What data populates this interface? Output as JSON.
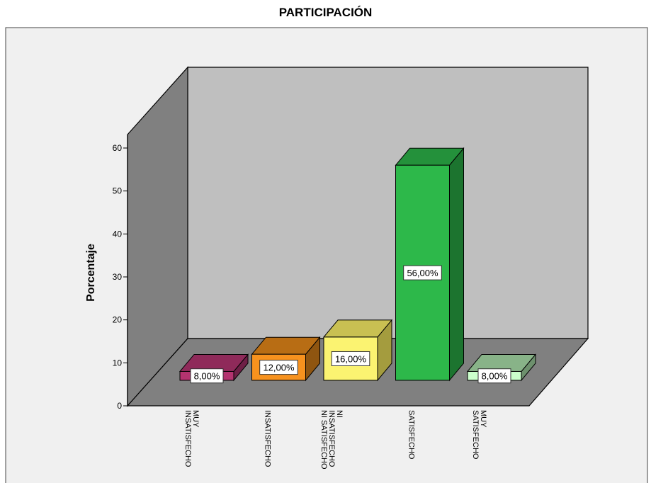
{
  "chart_data": {
    "type": "bar",
    "title": "PARTICIPACIÓN",
    "xlabel": "",
    "ylabel": "Porcentaje",
    "ylim": [
      0,
      60
    ],
    "yticks": [
      0,
      10,
      20,
      30,
      40,
      50,
      60
    ],
    "categories": [
      [
        "MUY",
        "INSATISFECHO"
      ],
      [
        "INSATISFECHO"
      ],
      [
        "NI",
        "INSATISFECHO",
        "NI SATISFECHO"
      ],
      [
        "SATISFECHO"
      ],
      [
        "MUY",
        "SATISFECHO"
      ]
    ],
    "values": [
      8,
      12,
      16,
      56,
      8
    ],
    "data_labels": [
      "8,00%",
      "12,00%",
      "16,00%",
      "56,00%",
      "8,00%"
    ],
    "colors": [
      {
        "front": "#b3336f",
        "top": "#8f2a5a",
        "side": "#6e1f46"
      },
      {
        "front": "#f7921e",
        "top": "#b86d14",
        "side": "#8f5510"
      },
      {
        "front": "#fbf371",
        "top": "#c9c052",
        "side": "#a49c3e"
      },
      {
        "front": "#2db84a",
        "top": "#24913b",
        "side": "#1c742f"
      },
      {
        "front": "#ccffcc",
        "top": "#88b388",
        "side": "#6d906d"
      }
    ],
    "view": "3d",
    "grid": false,
    "legend": "none"
  }
}
